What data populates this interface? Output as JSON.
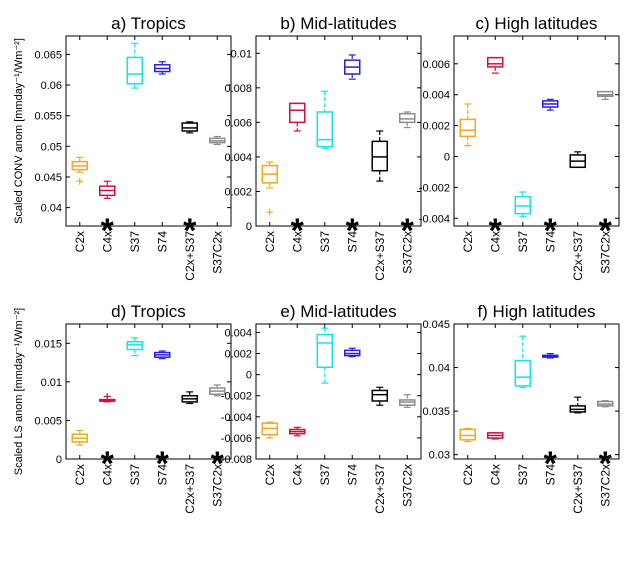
{
  "colors": {
    "C2x": "#f5a623",
    "C4x": "#d0103a",
    "S37": "#19e3e3",
    "S74": "#2a1fd6",
    "C2x+S37": "#000000",
    "S37C2x": "#8c8c8c"
  },
  "chart_data": [
    {
      "type": "box",
      "title": "a)   Tropics",
      "ylabel": "Scaled CONV anom [mmday⁻¹/Wm⁻²]",
      "ylim": [
        0.037,
        0.068
      ],
      "yticks": [
        0.04,
        0.045,
        0.05,
        0.055,
        0.06,
        0.065
      ],
      "ytick_labels": [
        "0.04",
        "0.045",
        "0.05",
        "0.055",
        "0.06",
        "0.065"
      ],
      "categories": [
        "C2x",
        "C4x",
        "S37",
        "S74",
        "C2x+S37",
        "S37C2x"
      ],
      "boxes": [
        {
          "min": 0.0458,
          "q1": 0.0462,
          "median": 0.0468,
          "q3": 0.0475,
          "max": 0.0482,
          "outliers": [
            0.0443
          ]
        },
        {
          "min": 0.0415,
          "q1": 0.042,
          "median": 0.0428,
          "q3": 0.0435,
          "max": 0.0443,
          "outliers": []
        },
        {
          "min": 0.0595,
          "q1": 0.0602,
          "median": 0.0618,
          "q3": 0.0645,
          "max": 0.0668,
          "outliers": []
        },
        {
          "min": 0.0618,
          "q1": 0.0622,
          "median": 0.0627,
          "q3": 0.0633,
          "max": 0.0638,
          "outliers": []
        },
        {
          "min": 0.0522,
          "q1": 0.0525,
          "median": 0.053,
          "q3": 0.0538,
          "max": 0.054,
          "outliers": []
        },
        {
          "min": 0.0503,
          "q1": 0.0506,
          "median": 0.0509,
          "q3": 0.0513,
          "max": 0.0516,
          "outliers": []
        }
      ],
      "stars": [
        1,
        4
      ],
      "star_label": "*"
    },
    {
      "type": "box",
      "title": "b) Mid-latitudes",
      "ylabel": "",
      "ylim": [
        0,
        0.011
      ],
      "yticks": [
        0,
        0.002,
        0.004,
        0.006,
        0.008,
        0.01
      ],
      "ytick_labels": [
        "0",
        "0.002",
        "0.004",
        "0.006",
        "0.008",
        "0.01"
      ],
      "categories": [
        "C2x",
        "C4x",
        "S37",
        "S74",
        "C2x+S37",
        "S37C2x"
      ],
      "boxes": [
        {
          "min": 0.0022,
          "q1": 0.0025,
          "median": 0.003,
          "q3": 0.0035,
          "max": 0.0037,
          "outliers": [
            0.0008
          ]
        },
        {
          "min": 0.0055,
          "q1": 0.006,
          "median": 0.0067,
          "q3": 0.0071,
          "max": 0.0071,
          "outliers": []
        },
        {
          "min": 0.0045,
          "q1": 0.0046,
          "median": 0.005,
          "q3": 0.0066,
          "max": 0.0078,
          "outliers": []
        },
        {
          "min": 0.0085,
          "q1": 0.0088,
          "median": 0.0092,
          "q3": 0.0096,
          "max": 0.0099,
          "outliers": []
        },
        {
          "min": 0.0026,
          "q1": 0.0032,
          "median": 0.004,
          "q3": 0.0049,
          "max": 0.0055,
          "outliers": []
        },
        {
          "min": 0.0057,
          "q1": 0.006,
          "median": 0.0062,
          "q3": 0.0065,
          "max": 0.0066,
          "outliers": []
        }
      ],
      "stars": [
        1,
        3,
        5
      ],
      "star_label": "*"
    },
    {
      "type": "box",
      "title": "c) High latitudes",
      "ylabel": "",
      "ylim": [
        -0.0045,
        0.0078
      ],
      "yticks": [
        -0.004,
        -0.002,
        0,
        0.002,
        0.004,
        0.006
      ],
      "ytick_labels": [
        "-0.004",
        "-0.002",
        "0",
        "0.002",
        "0.004",
        "0.006"
      ],
      "categories": [
        "C2x",
        "C4x",
        "S37",
        "S74",
        "C2x+S37",
        "S37C2x"
      ],
      "boxes": [
        {
          "min": 0.0007,
          "q1": 0.0013,
          "median": 0.0017,
          "q3": 0.0024,
          "max": 0.0034,
          "outliers": []
        },
        {
          "min": 0.0054,
          "q1": 0.0058,
          "median": 0.006,
          "q3": 0.0064,
          "max": 0.0064,
          "outliers": []
        },
        {
          "min": -0.0039,
          "q1": -0.0037,
          "median": -0.0032,
          "q3": -0.0026,
          "max": -0.0023,
          "outliers": []
        },
        {
          "min": 0.003,
          "q1": 0.0032,
          "median": 0.0034,
          "q3": 0.0036,
          "max": 0.0037,
          "outliers": []
        },
        {
          "min": -0.0007,
          "q1": -0.0007,
          "median": -0.0003,
          "q3": 0.0001,
          "max": 0.0003,
          "outliers": []
        },
        {
          "min": 0.0037,
          "q1": 0.0039,
          "median": 0.004,
          "q3": 0.0042,
          "max": 0.0042,
          "outliers": []
        }
      ],
      "stars": [
        1,
        3,
        5
      ],
      "star_label": "*"
    },
    {
      "type": "box",
      "title": "d)   Tropics",
      "ylabel": "Scaled LS anom [mmday⁻¹/Wm⁻²]",
      "ylim": [
        0,
        0.0175
      ],
      "yticks": [
        0,
        0.005,
        0.01,
        0.015
      ],
      "ytick_labels": [
        "0",
        "0.005",
        "0.01",
        "0.015"
      ],
      "categories": [
        "C2x",
        "C4x",
        "S37",
        "S74",
        "C2x+S37",
        "S37C2x"
      ],
      "boxes": [
        {
          "min": 0.0018,
          "q1": 0.0022,
          "median": 0.0027,
          "q3": 0.0032,
          "max": 0.0037,
          "outliers": []
        },
        {
          "min": 0.0074,
          "q1": 0.0075,
          "median": 0.0076,
          "q3": 0.0077,
          "max": 0.0077,
          "outliers": [
            0.0081
          ]
        },
        {
          "min": 0.0134,
          "q1": 0.0142,
          "median": 0.0148,
          "q3": 0.0152,
          "max": 0.0157,
          "outliers": []
        },
        {
          "min": 0.013,
          "q1": 0.0132,
          "median": 0.0135,
          "q3": 0.0138,
          "max": 0.014,
          "outliers": []
        },
        {
          "min": 0.0072,
          "q1": 0.0074,
          "median": 0.0078,
          "q3": 0.0082,
          "max": 0.0087,
          "outliers": []
        },
        {
          "min": 0.0082,
          "q1": 0.0084,
          "median": 0.0088,
          "q3": 0.0092,
          "max": 0.0096,
          "outliers": []
        }
      ],
      "stars": [
        1,
        3,
        5
      ],
      "star_label": "*"
    },
    {
      "type": "box",
      "title": "e) Mid-latitudes",
      "ylabel": "",
      "ylim": [
        -0.008,
        0.0048
      ],
      "yticks": [
        -0.008,
        -0.006,
        -0.004,
        -0.002,
        0,
        0.002,
        0.004
      ],
      "ytick_labels": [
        "-0.008",
        "-0.006",
        "-0.004",
        "-0.002",
        "0",
        "0.002",
        "0.004"
      ],
      "categories": [
        "C2x",
        "C4x",
        "S37",
        "S74",
        "C2x+S37",
        "S37C2x"
      ],
      "boxes": [
        {
          "min": -0.006,
          "q1": -0.0057,
          "median": -0.0051,
          "q3": -0.0046,
          "max": -0.0045,
          "outliers": []
        },
        {
          "min": -0.0058,
          "q1": -0.0056,
          "median": -0.0054,
          "q3": -0.0052,
          "max": -0.005,
          "outliers": []
        },
        {
          "min": -0.0008,
          "q1": 0.0007,
          "median": 0.003,
          "q3": 0.0038,
          "max": 0.0044,
          "outliers": []
        },
        {
          "min": 0.0017,
          "q1": 0.0018,
          "median": 0.002,
          "q3": 0.0023,
          "max": 0.0025,
          "outliers": []
        },
        {
          "min": -0.0029,
          "q1": -0.0025,
          "median": -0.0019,
          "q3": -0.0015,
          "max": -0.0012,
          "outliers": []
        },
        {
          "min": -0.0031,
          "q1": -0.0029,
          "median": -0.0026,
          "q3": -0.0024,
          "max": -0.0019,
          "outliers": []
        }
      ],
      "stars": [],
      "star_label": "*"
    },
    {
      "type": "box",
      "title": "f) High latitudes",
      "ylabel": "",
      "ylim": [
        0.0295,
        0.045
      ],
      "yticks": [
        0.03,
        0.035,
        0.04,
        0.045
      ],
      "ytick_labels": [
        "0.03",
        "0.035",
        "0.04",
        "0.045"
      ],
      "categories": [
        "C2x",
        "C4x",
        "S37",
        "S74",
        "C2x+S37",
        "S37C2x"
      ],
      "boxes": [
        {
          "min": 0.0315,
          "q1": 0.0317,
          "median": 0.0322,
          "q3": 0.0329,
          "max": 0.033,
          "outliers": []
        },
        {
          "min": 0.0318,
          "q1": 0.0319,
          "median": 0.0322,
          "q3": 0.0325,
          "max": 0.0325,
          "outliers": []
        },
        {
          "min": 0.0377,
          "q1": 0.0379,
          "median": 0.0389,
          "q3": 0.0408,
          "max": 0.0436,
          "outliers": []
        },
        {
          "min": 0.0411,
          "q1": 0.0412,
          "median": 0.0413,
          "q3": 0.0414,
          "max": 0.0416,
          "outliers": []
        },
        {
          "min": 0.0348,
          "q1": 0.0349,
          "median": 0.0352,
          "q3": 0.0356,
          "max": 0.0366,
          "outliers": []
        },
        {
          "min": 0.0355,
          "q1": 0.0356,
          "median": 0.0358,
          "q3": 0.0361,
          "max": 0.0362,
          "outliers": []
        }
      ],
      "stars": [
        3,
        5
      ],
      "star_label": "*"
    }
  ]
}
